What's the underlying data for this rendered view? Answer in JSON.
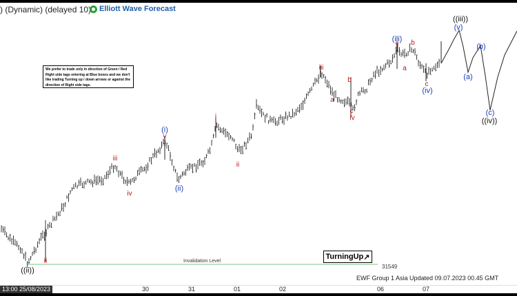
{
  "header": {
    "title": ") (Dynamic) (delayed 10)",
    "logo_text": "Elliott Wave Forecast"
  },
  "note": {
    "text": "We prefer to trade only in direction of Green / Red Right side tags entering at Blue boxes and we don't like trading Turning up / down arrows or against the direction of Right side tags."
  },
  "badge": {
    "label": "TurningUp"
  },
  "footer": {
    "text": "EWF Group 1 Asia Updated 09.07.2023 00.45 GMT"
  },
  "colors": {
    "red": "#c0141c",
    "blue": "#1a3fb4",
    "black": "#111111",
    "green": "#4caf50"
  },
  "chart_data": {
    "type": "ohlc-bars",
    "x_start_label": "13:00 25/08/2023",
    "x_ticks": [
      "30",
      "31",
      "01",
      "02",
      "06",
      "07"
    ],
    "invalidation": {
      "label": "Invalidation Level",
      "value": 31549
    },
    "price_label": "31549",
    "wave_labels": [
      {
        "text": "((ii))",
        "color": "black"
      },
      {
        "text": "i",
        "color": "red"
      },
      {
        "text": "ii",
        "color": "red"
      },
      {
        "text": "iii",
        "color": "red"
      },
      {
        "text": "iv",
        "color": "red"
      },
      {
        "text": "(i)",
        "color": "blue"
      },
      {
        "text": "v",
        "color": "red"
      },
      {
        "text": "(ii)",
        "color": "blue"
      },
      {
        "text": "i",
        "color": "red"
      },
      {
        "text": "ii",
        "color": "red"
      },
      {
        "text": "iii",
        "color": "red"
      },
      {
        "text": "a",
        "color": "red"
      },
      {
        "text": "b",
        "color": "red"
      },
      {
        "text": "c",
        "color": "red"
      },
      {
        "text": "iv",
        "color": "red"
      },
      {
        "text": "(iii)",
        "color": "blue"
      },
      {
        "text": "v",
        "color": "red"
      },
      {
        "text": "a",
        "color": "red"
      },
      {
        "text": "b",
        "color": "red"
      },
      {
        "text": "c",
        "color": "red"
      },
      {
        "text": "(iv)",
        "color": "blue"
      },
      {
        "text": "((iii))",
        "color": "black"
      },
      {
        "text": "(v)",
        "color": "blue"
      },
      {
        "text": "(a)",
        "color": "blue"
      },
      {
        "text": "(b)",
        "color": "blue"
      },
      {
        "text": "(c)",
        "color": "blue"
      },
      {
        "text": "((iv))",
        "color": "black"
      }
    ]
  }
}
